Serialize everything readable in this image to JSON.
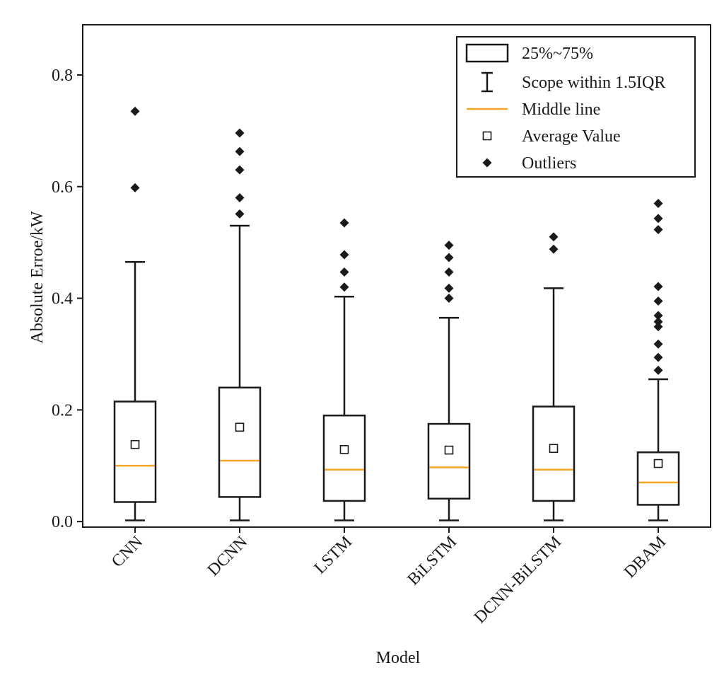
{
  "chart_data": {
    "type": "boxplot",
    "title": "",
    "xlabel": "Model",
    "ylabel": "Absolute Erroe/kW",
    "ylim": [
      -0.01,
      0.89
    ],
    "yticks": [
      0.0,
      0.2,
      0.4,
      0.6,
      0.8
    ],
    "ytick_labels": [
      "0.0",
      "0.2",
      "0.4",
      "0.6",
      "0.8"
    ],
    "categories": [
      "CNN",
      "DCNN",
      "LSTM",
      "BiLSTM",
      "DCNN-BiLSTM",
      "DBAM"
    ],
    "boxes": [
      {
        "name": "CNN",
        "whisker_low": 0.002,
        "q1": 0.035,
        "median": 0.1,
        "q3": 0.215,
        "whisker_high": 0.465,
        "mean": 0.138,
        "outliers": [
          0.598,
          0.735
        ]
      },
      {
        "name": "DCNN",
        "whisker_low": 0.002,
        "q1": 0.044,
        "median": 0.109,
        "q3": 0.24,
        "whisker_high": 0.53,
        "mean": 0.169,
        "outliers": [
          0.551,
          0.58,
          0.63,
          0.663,
          0.696
        ]
      },
      {
        "name": "LSTM",
        "whisker_low": 0.002,
        "q1": 0.037,
        "median": 0.093,
        "q3": 0.19,
        "whisker_high": 0.403,
        "mean": 0.129,
        "outliers": [
          0.42,
          0.447,
          0.478,
          0.535
        ]
      },
      {
        "name": "BiLSTM",
        "whisker_low": 0.002,
        "q1": 0.041,
        "median": 0.097,
        "q3": 0.175,
        "whisker_high": 0.365,
        "mean": 0.128,
        "outliers": [
          0.4,
          0.418,
          0.447,
          0.473,
          0.495
        ]
      },
      {
        "name": "DCNN-BiLSTM",
        "whisker_low": 0.002,
        "q1": 0.037,
        "median": 0.093,
        "q3": 0.206,
        "whisker_high": 0.418,
        "mean": 0.131,
        "outliers": [
          0.488,
          0.51
        ]
      },
      {
        "name": "DBAM",
        "whisker_low": 0.002,
        "q1": 0.03,
        "median": 0.07,
        "q3": 0.124,
        "whisker_high": 0.255,
        "mean": 0.104,
        "outliers": [
          0.271,
          0.294,
          0.318,
          0.349,
          0.358,
          0.369,
          0.395,
          0.421,
          0.523,
          0.543,
          0.57
        ]
      }
    ],
    "legend": {
      "position": "top-right",
      "entries": [
        {
          "marker": "box",
          "label": "25%~75%"
        },
        {
          "marker": "whisker",
          "label": "Scope within 1.5IQR"
        },
        {
          "marker": "median-line",
          "label": "Middle line"
        },
        {
          "marker": "mean-square",
          "label": "Average Value"
        },
        {
          "marker": "outlier-diamond",
          "label": "Outliers"
        }
      ]
    },
    "colors": {
      "box": "#1a1a1a",
      "median": "#f5a623",
      "outlier": "#1a1a1a",
      "mean": "#1a1a1a",
      "frame": "#1a1a1a"
    }
  }
}
